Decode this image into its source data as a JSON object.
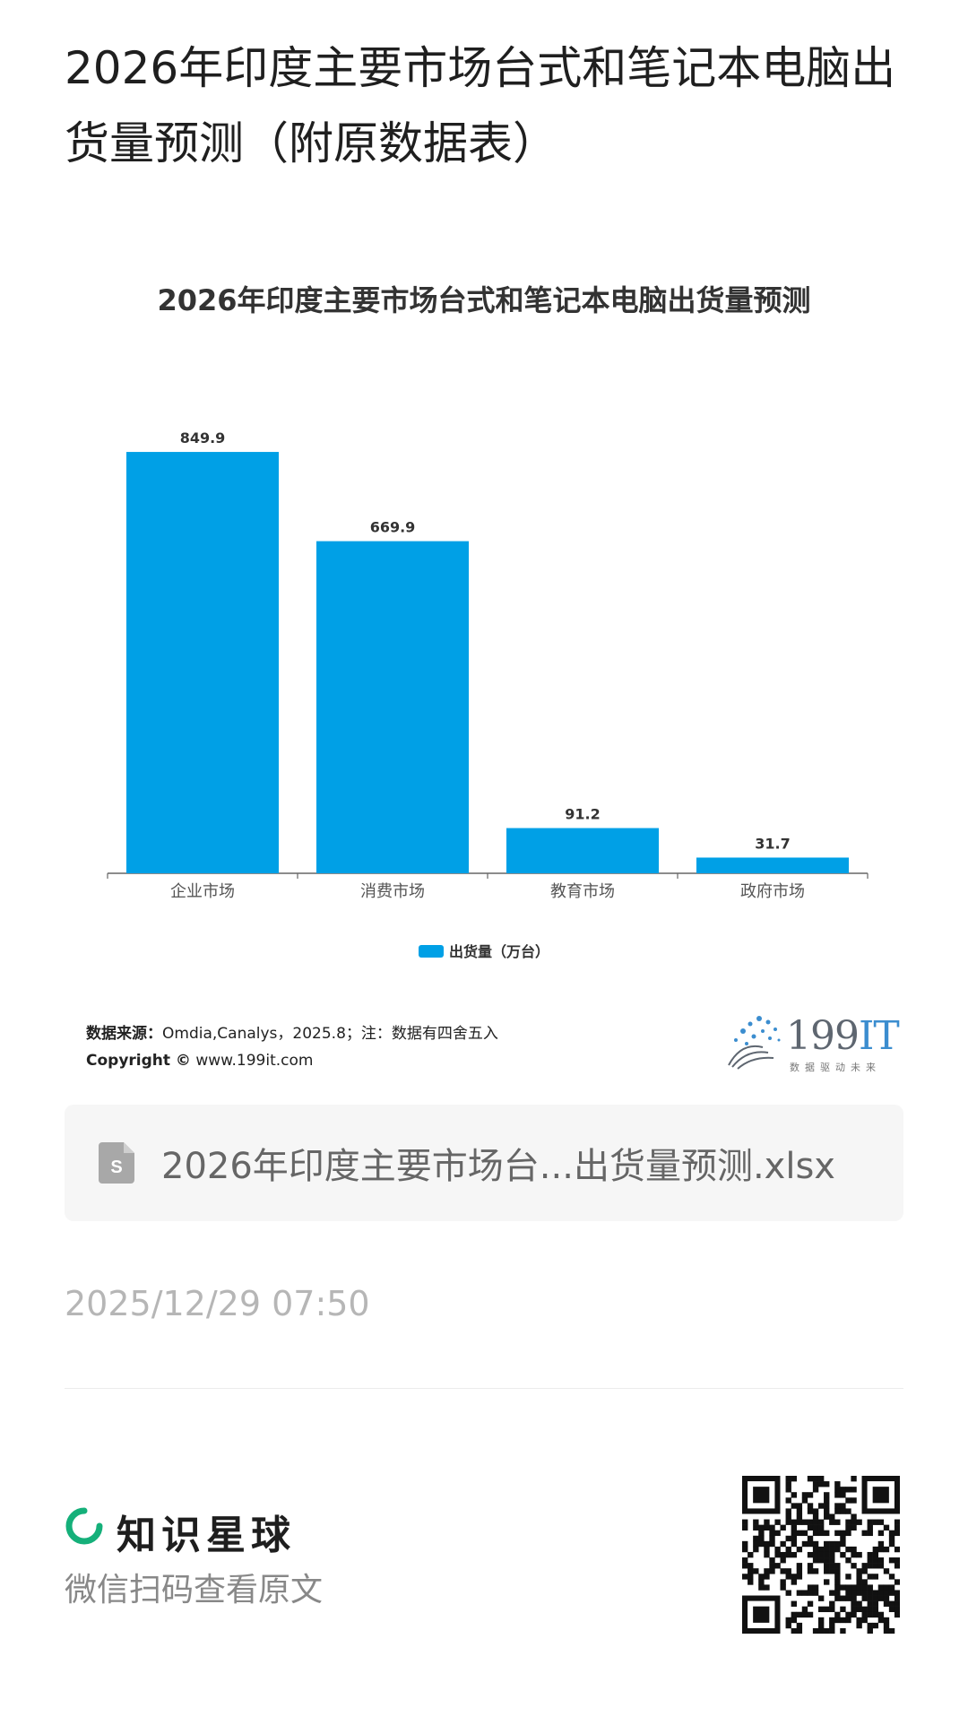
{
  "post": {
    "title": "2026年印度主要市场台式和笔记本电脑出货量预测（附原数据表）",
    "date": "2025/12/29 07:50"
  },
  "chart_data": {
    "type": "bar",
    "title": "2026年印度主要市场台式和笔记本电脑出货量预测",
    "categories": [
      "企业市场",
      "消费市场",
      "教育市场",
      "政府市场"
    ],
    "series": [
      {
        "name": "出货量（万台）",
        "values": [
          849.9,
          669.9,
          91.2,
          31.7
        ],
        "color": "#00a0e6"
      }
    ],
    "data_labels": [
      "849.9",
      "669.9",
      "91.2",
      "31.7"
    ],
    "ylim": [
      0,
      850
    ],
    "grid": false,
    "legend": "bottom-center"
  },
  "source": {
    "label": "数据来源：",
    "text": "Omdia,Canalys，2025.8；注：数据有四舍五入",
    "copyright_label": "Copyright ©",
    "copyright_text": "www.199it.com"
  },
  "logo": {
    "number": "199",
    "suffix": "IT",
    "slogan": "数据驱动未来"
  },
  "attachment": {
    "icon": "spreadsheet-file-icon",
    "filename": "2026年印度主要市场台...出货量预测.xlsx"
  },
  "footer": {
    "brand_name": "知识星球",
    "brand_icon": "zsxq-ring-icon",
    "brand_color": "#15b07a",
    "scan_hint": "微信扫码查看原文"
  }
}
